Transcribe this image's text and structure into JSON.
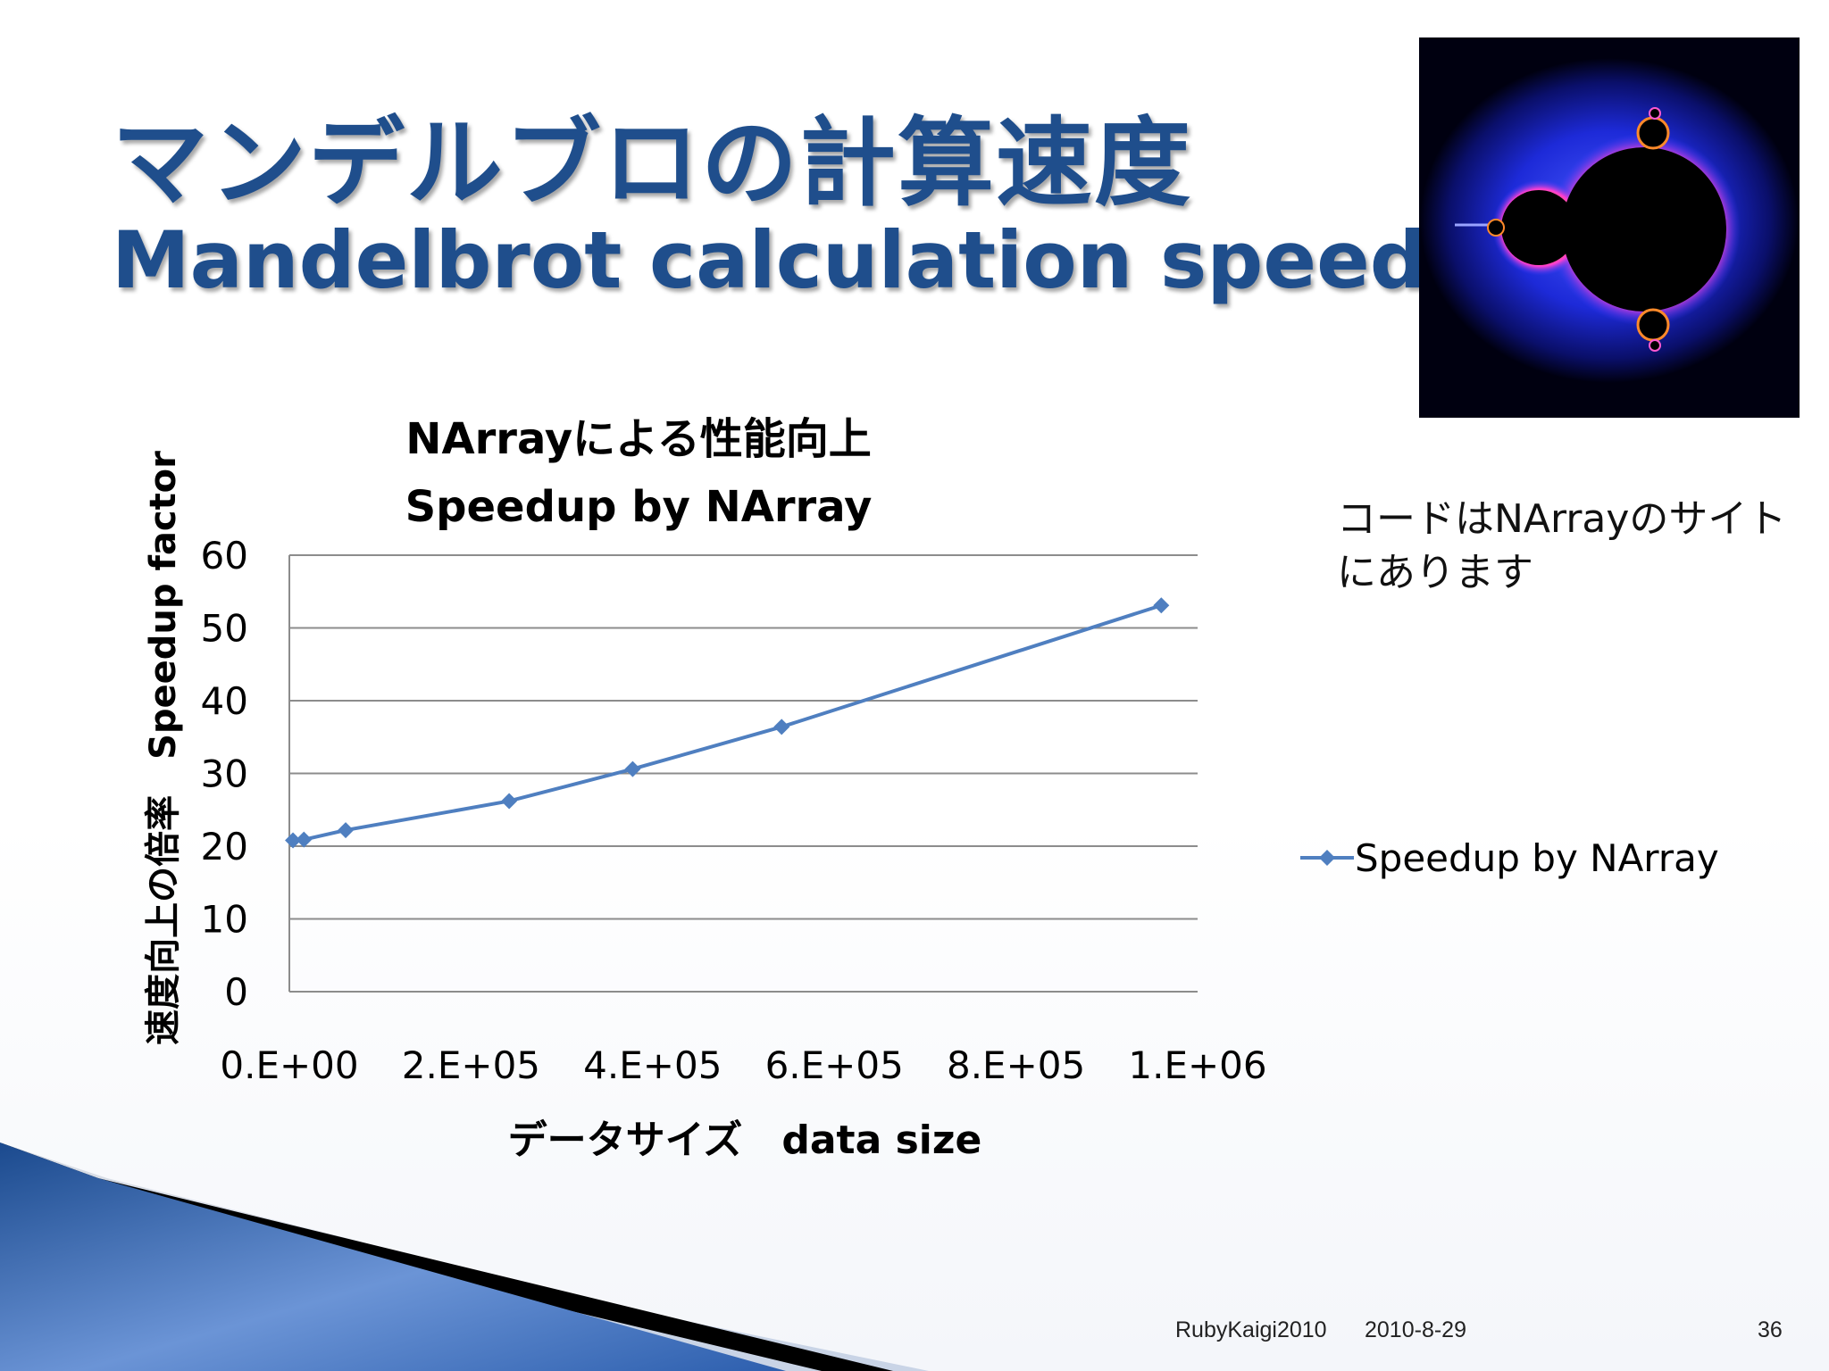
{
  "slide": {
    "title_jp": "マンデルブロの計算速度",
    "title_en": "Mandelbrot calculation speed",
    "note": "コードはNArrayのサイトにあります",
    "image": "mandelbrot-set-image"
  },
  "footer": {
    "event": "RubyKaigi2010",
    "date": "2010-8-29",
    "page": "36"
  },
  "colors": {
    "title": "#1f4e8c",
    "series": "#4f7fc0",
    "gridline": "#8c8c8c"
  },
  "chart_data": {
    "type": "scatter",
    "title": "NArrayによる性能向上",
    "subtitle": "Speedup by NArray",
    "xlabel": "データサイズ　data size",
    "ylabel": "速度向上の倍率　Speedup factor",
    "xlim": [
      0,
      1000000
    ],
    "ylim": [
      0,
      60
    ],
    "x_ticks": [
      "0.E+00",
      "2.E+05",
      "4.E+05",
      "6.E+05",
      "8.E+05",
      "1.E+06"
    ],
    "y_ticks": [
      "0",
      "10",
      "20",
      "30",
      "40",
      "50",
      "60"
    ],
    "grid": true,
    "lines": true,
    "marker": "diamond",
    "legend_position": "right",
    "series": [
      {
        "name": "Speedup by NArray",
        "x": [
          4000,
          16000,
          62000,
          242000,
          378000,
          542000,
          960000
        ],
        "y": [
          20.8,
          20.9,
          22.2,
          26.2,
          30.6,
          36.4,
          53.1
        ]
      }
    ]
  }
}
